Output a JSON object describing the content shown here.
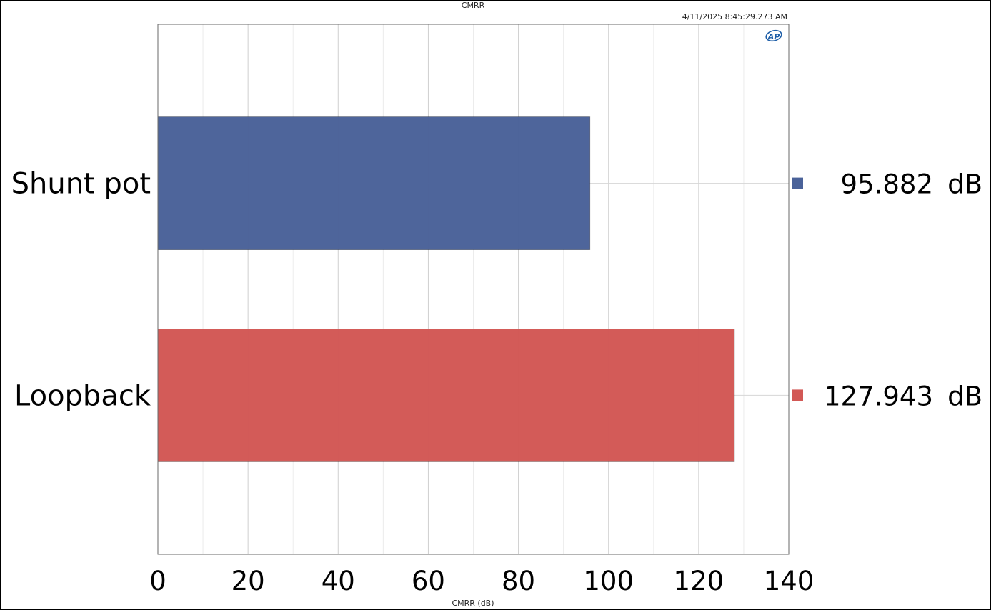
{
  "chart_data": {
    "type": "bar",
    "orientation": "horizontal",
    "title": "CMRR",
    "timestamp": "4/11/2025 8:45:29.273 AM",
    "xlabel": "CMRR (dB)",
    "ylabel": "",
    "xlim": [
      0,
      140
    ],
    "x_ticks": [
      "0",
      "20",
      "40",
      "60",
      "80",
      "100",
      "120",
      "140"
    ],
    "grid": true,
    "categories": [
      "Shunt pot",
      "Loopback"
    ],
    "values": [
      95.882,
      127.943
    ],
    "value_labels": [
      "95.882",
      "127.943"
    ],
    "unit": "dB",
    "colors": [
      "#4a6299",
      "#d25855"
    ],
    "legend_position": "right"
  },
  "logo": "AP"
}
